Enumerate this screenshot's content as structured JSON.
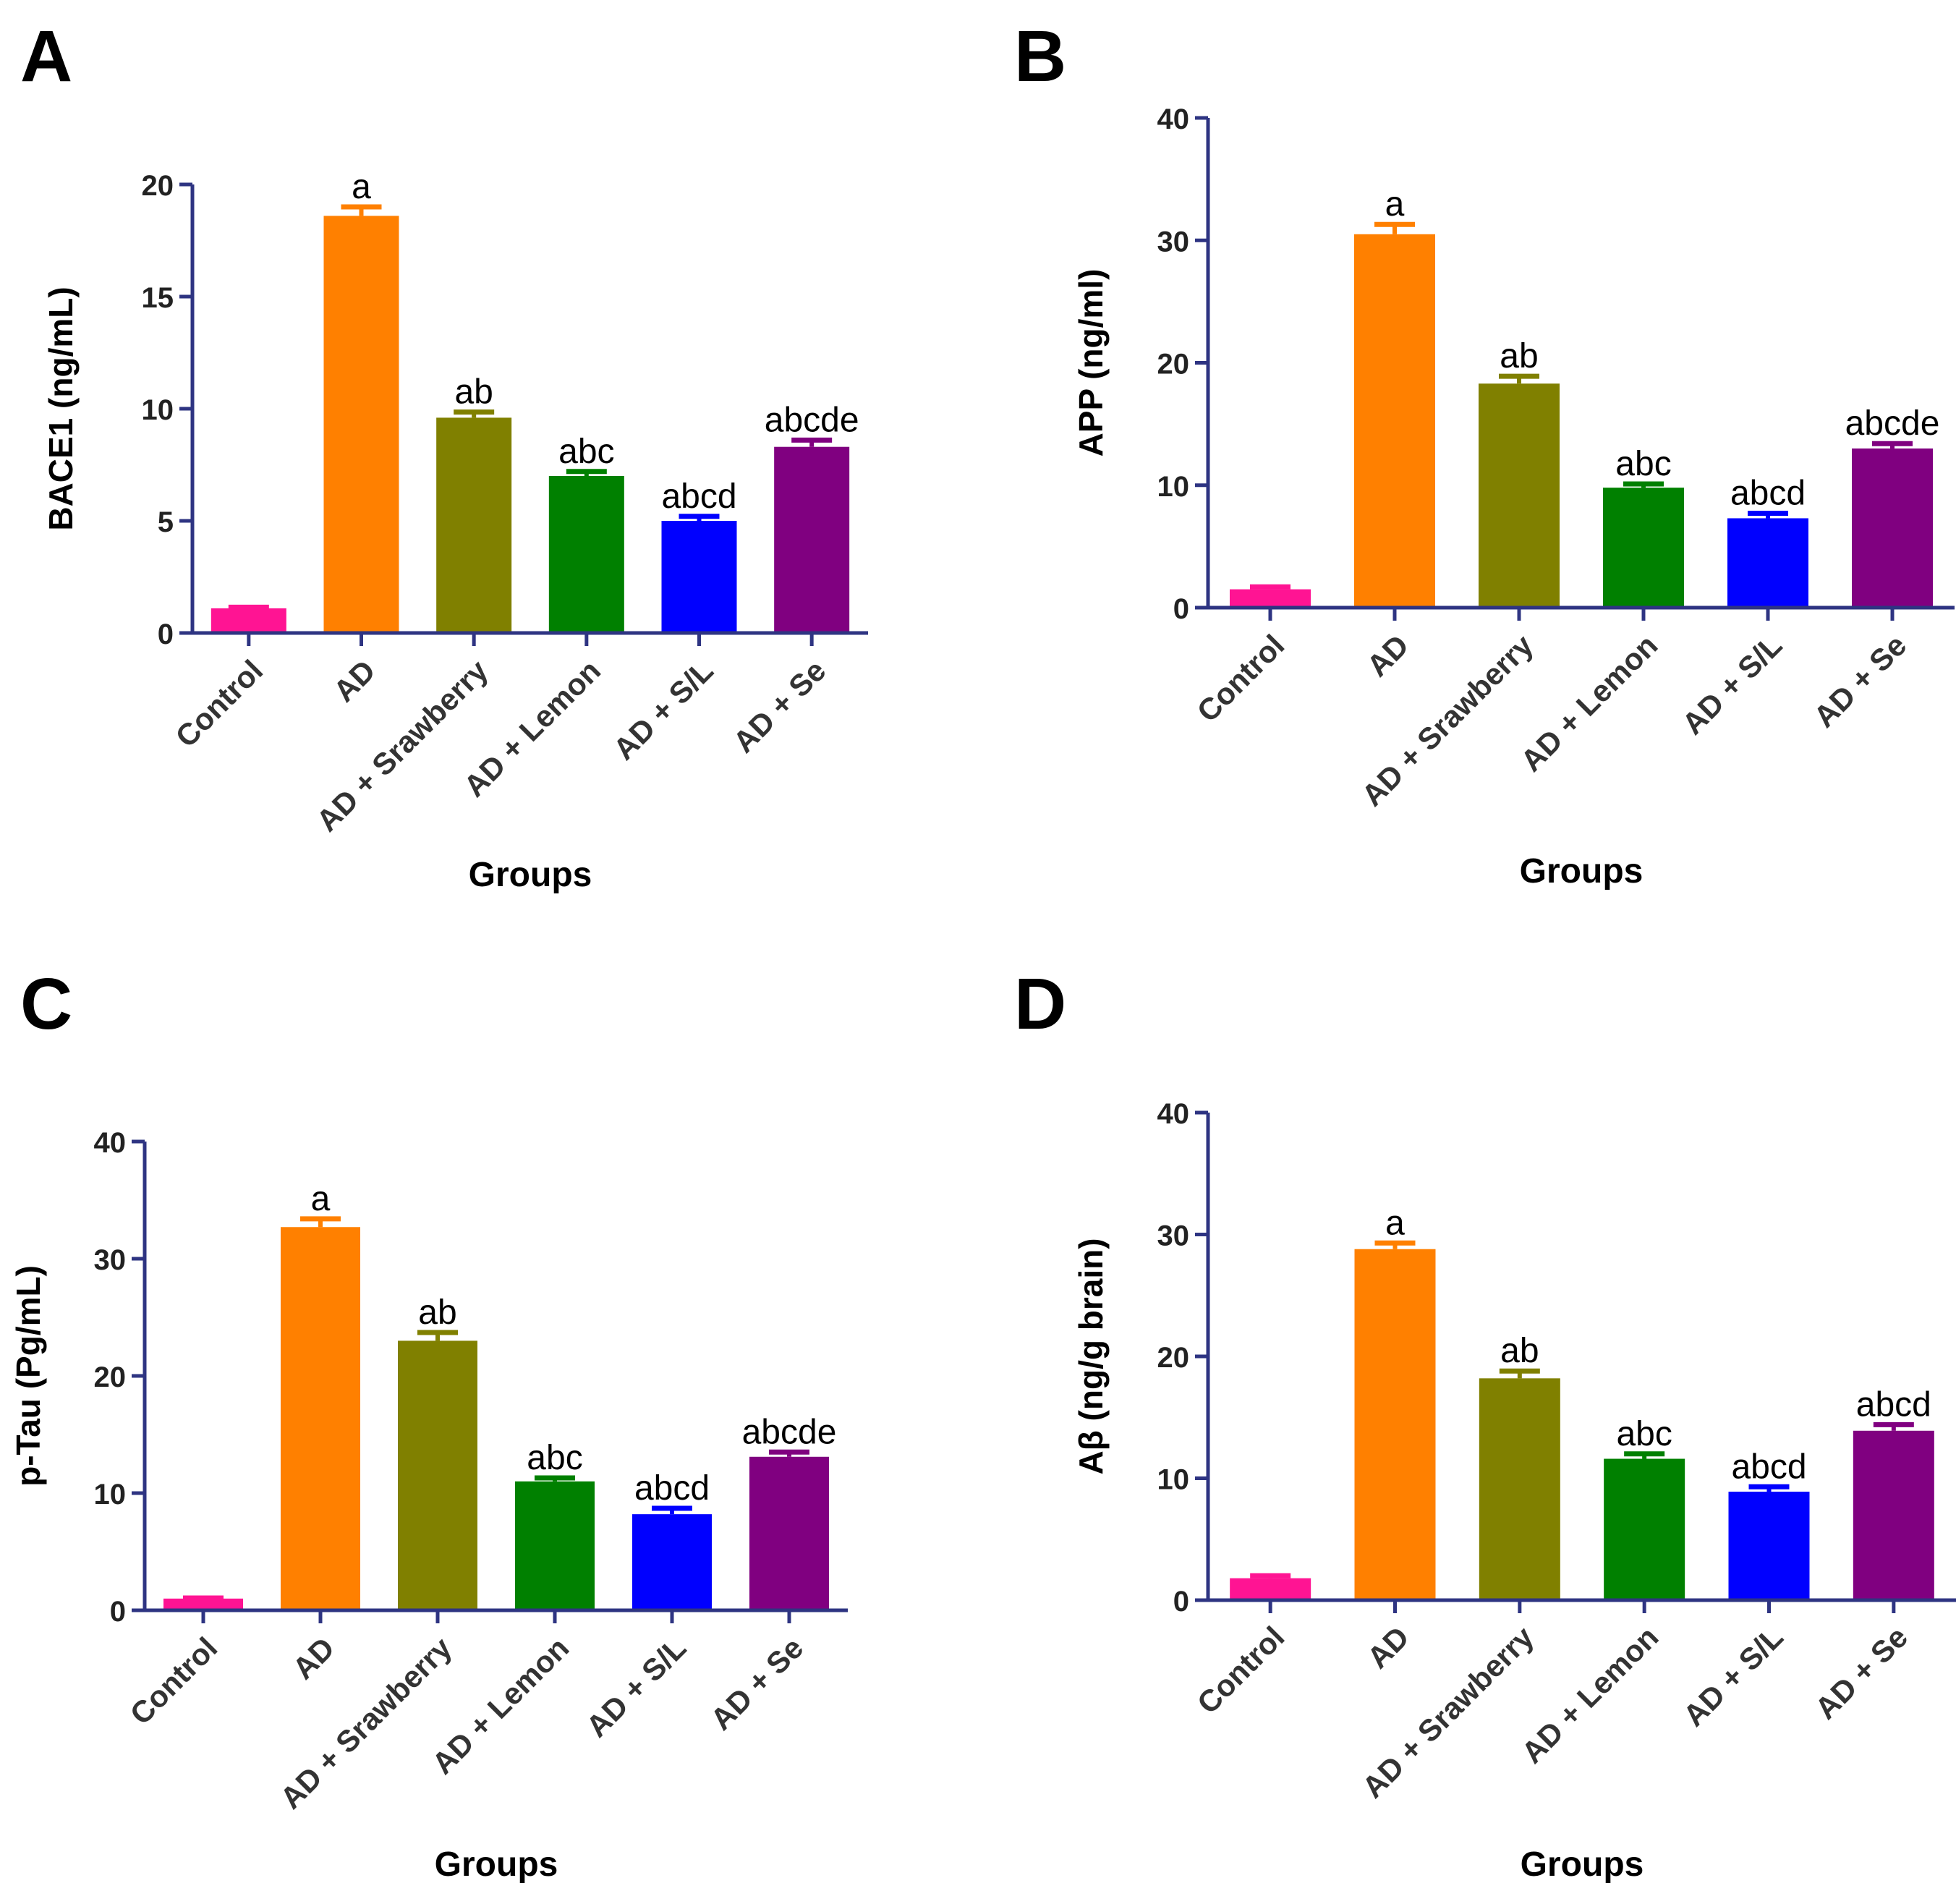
{
  "colors": {
    "axis": "#2E3482",
    "bars": [
      "#FF1493",
      "#FF8000",
      "#808000",
      "#008000",
      "#0000FF",
      "#800080"
    ]
  },
  "chart_data": [
    {
      "type": "bar",
      "panel": "A",
      "categories": [
        "Control",
        "AD",
        "AD + Srawberry",
        "AD + Lemon",
        "AD + S/L",
        "AD + Se"
      ],
      "values": [
        1.1,
        18.6,
        9.6,
        7.0,
        5.0,
        8.3
      ],
      "errors": [
        0.05,
        0.4,
        0.25,
        0.2,
        0.2,
        0.3
      ],
      "significance": [
        "",
        "a",
        "ab",
        "abc",
        "abcd",
        "abcde"
      ],
      "ylabel": "BACE1 (ng/mL)",
      "xlabel": "Groups",
      "ylim": [
        0,
        20
      ],
      "yticks": [
        0,
        5,
        10,
        15,
        20
      ],
      "title": "",
      "grid": false
    },
    {
      "type": "bar",
      "panel": "B",
      "categories": [
        "Control",
        "AD",
        "AD + Srawberry",
        "AD + Lemon",
        "AD + S/L",
        "AD + Se"
      ],
      "values": [
        1.5,
        30.5,
        18.3,
        9.8,
        7.3,
        13.0
      ],
      "errors": [
        0.2,
        0.8,
        0.6,
        0.3,
        0.4,
        0.4
      ],
      "significance": [
        "",
        "a",
        "ab",
        "abc",
        "abcd",
        "abcde"
      ],
      "ylabel": "APP (ng/ml)",
      "xlabel": "Groups",
      "ylim": [
        0,
        40
      ],
      "yticks": [
        0,
        10,
        20,
        30,
        40
      ],
      "title": "",
      "grid": false
    },
    {
      "type": "bar",
      "panel": "C",
      "categories": [
        "Control",
        "AD",
        "AD + Srawberry",
        "AD + Lemon",
        "AD + S/L",
        "AD + Se"
      ],
      "values": [
        1.0,
        32.7,
        23.0,
        11.0,
        8.2,
        13.1
      ],
      "errors": [
        0.05,
        0.7,
        0.7,
        0.3,
        0.5,
        0.4
      ],
      "significance": [
        "",
        "a",
        "ab",
        "abc",
        "abcd",
        "abcde"
      ],
      "ylabel": "p-Tau (Pg/mL)",
      "xlabel": "Groups",
      "ylim": [
        0,
        40
      ],
      "yticks": [
        0,
        10,
        20,
        30,
        40
      ],
      "title": "",
      "grid": false
    },
    {
      "type": "bar",
      "panel": "D",
      "categories": [
        "Control",
        "AD",
        "AD + Srawberry",
        "AD + Lemon",
        "AD + S/L",
        "AD + Se"
      ],
      "values": [
        1.8,
        28.8,
        18.2,
        11.6,
        8.9,
        13.9
      ],
      "errors": [
        0.2,
        0.5,
        0.6,
        0.4,
        0.4,
        0.5
      ],
      "significance": [
        "",
        "a",
        "ab",
        "abc",
        "abcd",
        "abcd"
      ],
      "ylabel": "Aβ (ng/g brain)",
      "xlabel": "Groups",
      "ylim": [
        0,
        40
      ],
      "yticks": [
        0,
        10,
        20,
        30,
        40
      ],
      "title": "",
      "grid": false
    }
  ]
}
